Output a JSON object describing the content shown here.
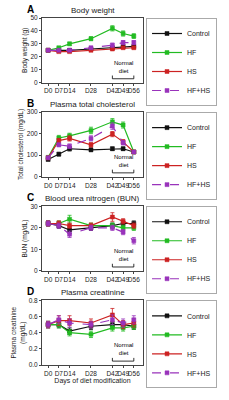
{
  "chart_data": [
    {
      "type": "line",
      "title": "Body weight",
      "ylabel": "Body weight (g)",
      "x": [
        0,
        7,
        14,
        28,
        42,
        49,
        56
      ],
      "xlim": [
        -4,
        62
      ],
      "xticks": [
        {
          "value": 0,
          "label": "D0"
        },
        {
          "value": 7,
          "label": "D7"
        },
        {
          "value": 14,
          "label": "D14"
        },
        {
          "value": 28,
          "label": "D28"
        },
        {
          "value": 42,
          "label": "D42"
        },
        {
          "value": 49,
          "label": "D49"
        },
        {
          "value": 56,
          "label": "D56"
        }
      ],
      "ylim": [
        0,
        50
      ],
      "yticks": [
        0,
        10,
        20,
        30,
        40,
        50
      ],
      "grid": false,
      "legend": "right",
      "series": [
        {
          "name": "Control",
          "color": "#111111",
          "line_style": "solid",
          "marker": "square",
          "values": [
            25,
            25,
            25,
            26,
            27,
            28,
            28
          ],
          "error": [
            0.8,
            0.8,
            0.8,
            0.8,
            0.8,
            0.8,
            0.8
          ]
        },
        {
          "name": "HF",
          "color": "#22bb22",
          "line_style": "solid",
          "marker": "square",
          "values": [
            25,
            27,
            30,
            34,
            42,
            38,
            36
          ],
          "error": [
            0.8,
            0.8,
            1.2,
            1.5,
            2.0,
            2.0,
            1.8
          ]
        },
        {
          "name": "HS",
          "color": "#cc2222",
          "line_style": "solid",
          "marker": "square",
          "values": [
            25,
            24,
            24,
            25,
            26,
            27,
            27
          ],
          "error": [
            0.8,
            0.8,
            0.8,
            0.8,
            0.8,
            0.8,
            0.8
          ]
        },
        {
          "name": "HF+HS",
          "color": "#9933bb",
          "line_style": "dashed",
          "marker": "square",
          "values": [
            25,
            25,
            25,
            27,
            29,
            31,
            31
          ],
          "error": [
            0.8,
            0.8,
            0.8,
            1.0,
            1.5,
            1.5,
            1.5
          ]
        }
      ],
      "annotations": [
        {
          "text": "Normal\ndiet",
          "x": [
            42,
            56
          ]
        },
        {
          "text": "A"
        }
      ]
    },
    {
      "type": "line",
      "title": "Plasma total cholesterol",
      "ylabel": "Total cholesterol (mg/dL)",
      "x": [
        0,
        7,
        14,
        28,
        42,
        49,
        56
      ],
      "xlim": [
        -4,
        62
      ],
      "xticks": [
        {
          "value": 0,
          "label": "D0"
        },
        {
          "value": 7,
          "label": "D7"
        },
        {
          "value": 14,
          "label": "D14"
        },
        {
          "value": 28,
          "label": "D28"
        },
        {
          "value": 42,
          "label": "D42"
        },
        {
          "value": 49,
          "label": "D49"
        },
        {
          "value": 56,
          "label": "D56"
        }
      ],
      "ylim": [
        0,
        300
      ],
      "yticks": [
        0,
        100,
        200,
        300
      ],
      "grid": false,
      "legend": "right",
      "series": [
        {
          "name": "Control",
          "color": "#111111",
          "line_style": "solid",
          "marker": "square",
          "values": [
            80,
            105,
            130,
            125,
            130,
            130,
            115
          ],
          "error": [
            5,
            8,
            10,
            8,
            8,
            8,
            7
          ]
        },
        {
          "name": "HF",
          "color": "#22bb22",
          "line_style": "solid",
          "marker": "square",
          "values": [
            90,
            180,
            190,
            215,
            255,
            240,
            115
          ],
          "error": [
            5,
            12,
            12,
            15,
            15,
            14,
            7
          ]
        },
        {
          "name": "HS",
          "color": "#cc2222",
          "line_style": "solid",
          "marker": "square",
          "values": [
            88,
            168,
            178,
            148,
            198,
            162,
            115
          ],
          "error": [
            5,
            10,
            12,
            10,
            12,
            10,
            7
          ]
        },
        {
          "name": "HF+HS",
          "color": "#9933bb",
          "line_style": "dashed",
          "marker": "square",
          "values": [
            88,
            148,
            142,
            178,
            235,
            158,
            115
          ],
          "error": [
            5,
            8,
            10,
            12,
            15,
            10,
            7
          ]
        }
      ],
      "annotations": [
        {
          "text": "Normal\ndiet",
          "x": [
            42,
            56
          ]
        },
        {
          "text": "B"
        }
      ]
    },
    {
      "type": "line",
      "title": "Blood urea nitrogen (BUN)",
      "ylabel": "BUN (mg/dL)",
      "x": [
        0,
        7,
        14,
        28,
        42,
        49,
        56
      ],
      "xlim": [
        -4,
        62
      ],
      "xticks": [
        {
          "value": 0,
          "label": "D0"
        },
        {
          "value": 7,
          "label": "D7"
        },
        {
          "value": 14,
          "label": "D14"
        },
        {
          "value": 28,
          "label": "D28"
        },
        {
          "value": 42,
          "label": "D42"
        },
        {
          "value": 49,
          "label": "D49"
        },
        {
          "value": 56,
          "label": "D56"
        }
      ],
      "ylim": [
        0,
        30
      ],
      "yticks": [
        0,
        10,
        20,
        30
      ],
      "grid": false,
      "legend": "right",
      "series": [
        {
          "name": "Control",
          "color": "#111111",
          "line_style": "solid",
          "marker": "square",
          "values": [
            22,
            21,
            19,
            20,
            21,
            22,
            22
          ],
          "error": [
            1.2,
            1.2,
            1.5,
            1.2,
            1.2,
            1.2,
            1.2
          ]
        },
        {
          "name": "HF",
          "color": "#22bb22",
          "line_style": "solid",
          "marker": "square",
          "values": [
            22,
            22,
            24,
            21,
            21,
            20,
            20
          ],
          "error": [
            1.2,
            1.2,
            1.8,
            1.2,
            1.2,
            1.2,
            1.2
          ]
        },
        {
          "name": "HS",
          "color": "#cc2222",
          "line_style": "solid",
          "marker": "square",
          "values": [
            22,
            22,
            21,
            21,
            25,
            23,
            21
          ],
          "error": [
            1.2,
            1.2,
            1.2,
            1.2,
            2.0,
            1.2,
            1.2
          ]
        },
        {
          "name": "HF+HS",
          "color": "#9933bb",
          "line_style": "dashed",
          "marker": "square",
          "values": [
            22,
            21,
            17,
            20,
            20,
            18,
            14
          ],
          "error": [
            1.2,
            1.2,
            1.5,
            1.2,
            1.2,
            1.2,
            1.5
          ]
        }
      ],
      "annotations": [
        {
          "text": "Normal\ndiet",
          "x": [
            42,
            56
          ]
        },
        {
          "text": "C"
        }
      ]
    },
    {
      "type": "line",
      "title": "Plasma creatinine",
      "ylabel": "Plasma creatinine\n(mg/dL)",
      "xlabel": "Days of diet modification",
      "x": [
        0,
        7,
        14,
        28,
        42,
        49,
        56
      ],
      "xlim": [
        -4,
        62
      ],
      "xticks": [
        {
          "value": 0,
          "label": "D0"
        },
        {
          "value": 7,
          "label": "D7"
        },
        {
          "value": 14,
          "label": "D14"
        },
        {
          "value": 28,
          "label": "D28"
        },
        {
          "value": 42,
          "label": "D42"
        },
        {
          "value": 49,
          "label": "D49"
        },
        {
          "value": 56,
          "label": "D56"
        }
      ],
      "ylim": [
        0.0,
        0.8
      ],
      "yticks": [
        {
          "value": 0.0,
          "label": "0.0"
        },
        0.2,
        0.4,
        0.6,
        0.8
      ],
      "grid": false,
      "legend": "right",
      "series": [
        {
          "name": "Control",
          "color": "#111111",
          "line_style": "solid",
          "marker": "square",
          "values": [
            0.5,
            0.5,
            0.42,
            0.48,
            0.5,
            0.5,
            0.48
          ],
          "error": [
            0.04,
            0.04,
            0.04,
            0.04,
            0.04,
            0.04,
            0.04
          ]
        },
        {
          "name": "HF",
          "color": "#22bb22",
          "line_style": "solid",
          "marker": "square",
          "values": [
            0.5,
            0.5,
            0.4,
            0.38,
            0.46,
            0.46,
            0.48
          ],
          "error": [
            0.04,
            0.04,
            0.04,
            0.04,
            0.04,
            0.04,
            0.04
          ]
        },
        {
          "name": "HS",
          "color": "#cc2222",
          "line_style": "solid",
          "marker": "square",
          "values": [
            0.5,
            0.55,
            0.55,
            0.52,
            0.62,
            0.5,
            0.52
          ],
          "error": [
            0.04,
            0.06,
            0.06,
            0.05,
            0.08,
            0.05,
            0.05
          ]
        },
        {
          "name": "HF+HS",
          "color": "#9933bb",
          "line_style": "dashed",
          "marker": "square",
          "values": [
            0.5,
            0.56,
            0.52,
            0.5,
            0.56,
            0.52,
            0.56
          ],
          "error": [
            0.04,
            0.05,
            0.05,
            0.04,
            0.06,
            0.05,
            0.05
          ]
        }
      ],
      "annotations": [
        {
          "text": "Normal\ndiet",
          "x": [
            42,
            56
          ]
        },
        {
          "text": "D"
        }
      ]
    }
  ]
}
